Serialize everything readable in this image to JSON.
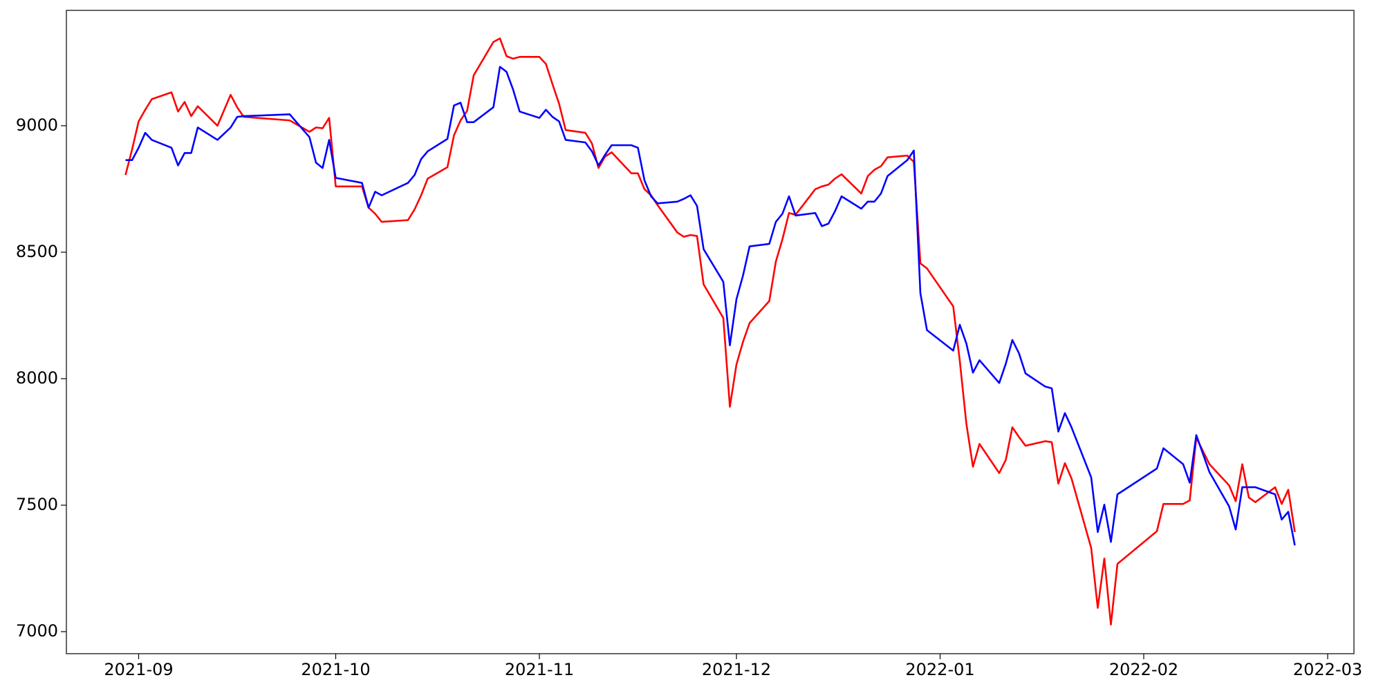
{
  "chart_data": {
    "type": "line",
    "x": [
      "2021-08-30",
      "2021-08-31",
      "2021-09-01",
      "2021-09-02",
      "2021-09-03",
      "2021-09-06",
      "2021-09-07",
      "2021-09-08",
      "2021-09-09",
      "2021-09-10",
      "2021-09-13",
      "2021-09-15",
      "2021-09-16",
      "2021-09-17",
      "2021-09-24",
      "2021-09-27",
      "2021-09-28",
      "2021-09-29",
      "2021-09-30",
      "2021-10-01",
      "2021-10-05",
      "2021-10-06",
      "2021-10-07",
      "2021-10-08",
      "2021-10-12",
      "2021-10-13",
      "2021-10-14",
      "2021-10-15",
      "2021-10-18",
      "2021-10-19",
      "2021-10-20",
      "2021-10-21",
      "2021-10-22",
      "2021-10-25",
      "2021-10-26",
      "2021-10-27",
      "2021-10-28",
      "2021-10-29",
      "2021-11-01",
      "2021-11-02",
      "2021-11-03",
      "2021-11-04",
      "2021-11-05",
      "2021-11-08",
      "2021-11-09",
      "2021-11-10",
      "2021-11-11",
      "2021-11-12",
      "2021-11-15",
      "2021-11-16",
      "2021-11-17",
      "2021-11-18",
      "2021-11-19",
      "2021-11-22",
      "2021-11-23",
      "2021-11-24",
      "2021-11-25",
      "2021-11-26",
      "2021-11-29",
      "2021-11-30",
      "2021-12-01",
      "2021-12-02",
      "2021-12-03",
      "2021-12-06",
      "2021-12-07",
      "2021-12-08",
      "2021-12-09",
      "2021-12-10",
      "2021-12-13",
      "2021-12-14",
      "2021-12-15",
      "2021-12-16",
      "2021-12-17",
      "2021-12-20",
      "2021-12-21",
      "2021-12-22",
      "2021-12-23",
      "2021-12-24",
      "2021-12-27",
      "2021-12-28",
      "2021-12-29",
      "2021-12-30",
      "2022-01-03",
      "2022-01-04",
      "2022-01-05",
      "2022-01-06",
      "2022-01-07",
      "2022-01-10",
      "2022-01-11",
      "2022-01-12",
      "2022-01-13",
      "2022-01-14",
      "2022-01-17",
      "2022-01-18",
      "2022-01-19",
      "2022-01-20",
      "2022-01-21",
      "2022-01-24",
      "2022-01-25",
      "2022-01-26",
      "2022-01-27",
      "2022-01-28",
      "2022-02-03",
      "2022-02-04",
      "2022-02-07",
      "2022-02-08",
      "2022-02-09",
      "2022-02-11",
      "2022-02-14",
      "2022-02-15",
      "2022-02-16",
      "2022-02-17",
      "2022-02-18",
      "2022-02-21",
      "2022-02-22",
      "2022-02-23",
      "2022-02-24"
    ],
    "series": [
      {
        "color": "#ff0000",
        "values": [
          8805,
          8906,
          9017,
          9063,
          9105,
          9132,
          9056,
          9094,
          9038,
          9077,
          9000,
          9122,
          9073,
          9035,
          9021,
          8976,
          8993,
          8990,
          9031,
          8760,
          8760,
          8676,
          8652,
          8620,
          8627,
          8669,
          8725,
          8791,
          8836,
          8962,
          9021,
          9059,
          9199,
          9331,
          9345,
          9275,
          9265,
          9272,
          9272,
          9244,
          9164,
          9087,
          8983,
          8972,
          8930,
          8833,
          8878,
          8895,
          8812,
          8812,
          8749,
          8725,
          8686,
          8578,
          8561,
          8568,
          8564,
          8373,
          8240,
          7889,
          8056,
          8146,
          8220,
          8307,
          8463,
          8551,
          8655,
          8648,
          8749,
          8760,
          8767,
          8791,
          8808,
          8732,
          8801,
          8826,
          8840,
          8875,
          8882,
          8857,
          8456,
          8436,
          8286,
          8070,
          7822,
          7652,
          7742,
          7627,
          7679,
          7808,
          7770,
          7735,
          7753,
          7749,
          7585,
          7666,
          7606,
          7331,
          7094,
          7289,
          7028,
          7268,
          7397,
          7505,
          7505,
          7519,
          7767,
          7662,
          7578,
          7516,
          7662,
          7530,
          7512,
          7571,
          7505,
          7561,
          7394
        ]
      },
      {
        "color": "#0000ff",
        "values": [
          8864,
          8864,
          8913,
          8972,
          8944,
          8913,
          8843,
          8892,
          8892,
          8993,
          8944,
          8993,
          9035,
          9038,
          9045,
          8955,
          8854,
          8833,
          8944,
          8794,
          8774,
          8676,
          8739,
          8725,
          8774,
          8805,
          8868,
          8899,
          8948,
          9080,
          9091,
          9014,
          9014,
          9073,
          9233,
          9213,
          9143,
          9056,
          9031,
          9063,
          9035,
          9017,
          8944,
          8934,
          8899,
          8843,
          8885,
          8923,
          8923,
          8913,
          8784,
          8721,
          8693,
          8700,
          8711,
          8725,
          8683,
          8512,
          8383,
          8132,
          8314,
          8408,
          8523,
          8533,
          8620,
          8652,
          8721,
          8645,
          8655,
          8603,
          8613,
          8662,
          8721,
          8672,
          8700,
          8700,
          8732,
          8801,
          8864,
          8902,
          8338,
          8192,
          8111,
          8213,
          8139,
          8024,
          8073,
          7983,
          8059,
          8153,
          8101,
          8021,
          7969,
          7962,
          7791,
          7864,
          7808,
          7610,
          7394,
          7502,
          7355,
          7543,
          7645,
          7725,
          7662,
          7589,
          7777,
          7631,
          7495,
          7404,
          7571,
          7571,
          7571,
          7543,
          7443,
          7474,
          7341
        ]
      }
    ],
    "xlim": [
      "2021-08-21",
      "2022-03-05"
    ],
    "xticks": [
      {
        "value": "2021-09-01",
        "label": "2021-09"
      },
      {
        "value": "2021-10-01",
        "label": "2021-10"
      },
      {
        "value": "2021-11-01",
        "label": "2021-11"
      },
      {
        "value": "2021-12-01",
        "label": "2021-12"
      },
      {
        "value": "2022-01-01",
        "label": "2022-01"
      },
      {
        "value": "2022-02-01",
        "label": "2022-02"
      },
      {
        "value": "2022-03-01",
        "label": "2022-03"
      }
    ],
    "ylim": [
      6913,
      9456
    ],
    "yticks": [
      7000,
      7500,
      8000,
      8500,
      9000
    ],
    "grid": false
  }
}
